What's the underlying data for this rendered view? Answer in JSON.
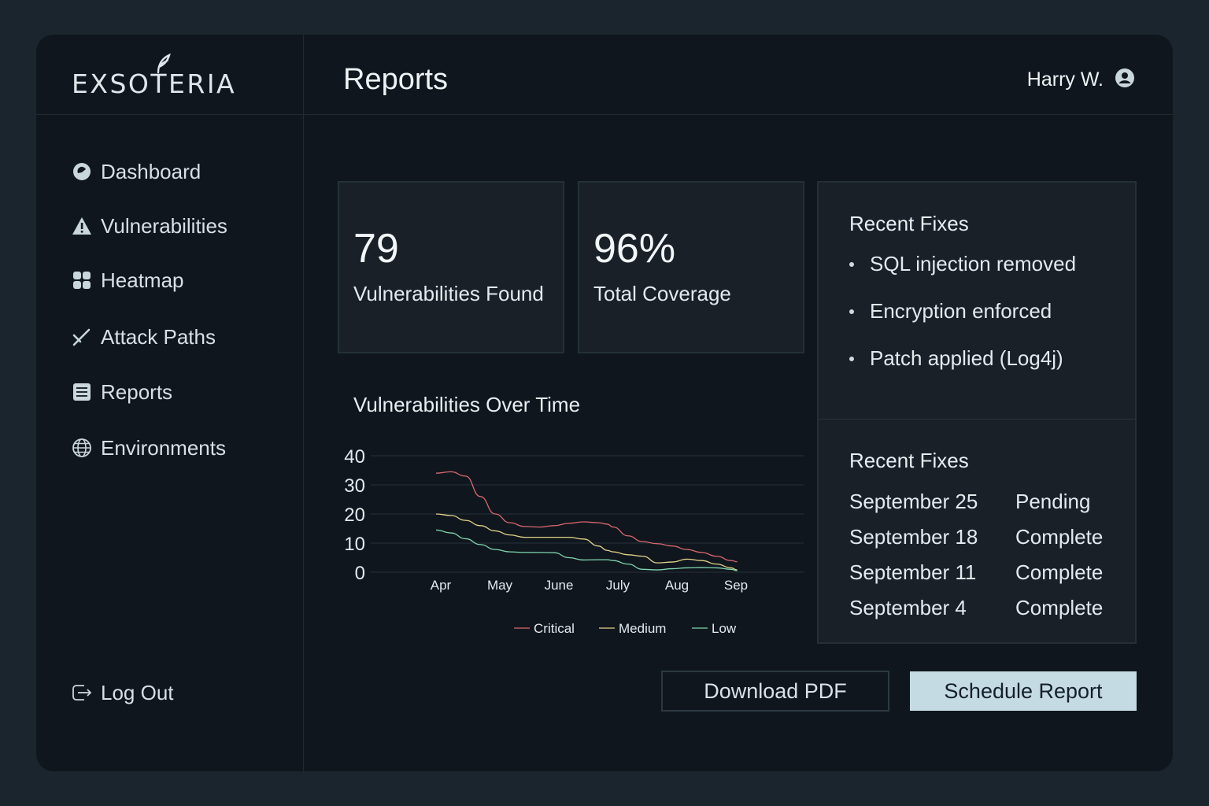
{
  "app": {
    "logo": "EXSOTERIA"
  },
  "header": {
    "title": "Reports",
    "user_name": "Harry W."
  },
  "sidebar": {
    "items": [
      {
        "label": "Dashboard",
        "icon": "dashboard-icon"
      },
      {
        "label": "Vulnerabilities",
        "icon": "warning-icon"
      },
      {
        "label": "Heatmap",
        "icon": "grid-icon"
      },
      {
        "label": "Attack Paths",
        "icon": "attack-path-icon"
      },
      {
        "label": "Reports",
        "icon": "report-icon"
      },
      {
        "label": "Environments",
        "icon": "globe-icon"
      }
    ],
    "logout_label": "Log Out"
  },
  "stats": [
    {
      "value": "79",
      "label": "Vulnerabilities Found"
    },
    {
      "value": "96%",
      "label": "Total Coverage"
    }
  ],
  "recent_fixes": {
    "title": "Recent Fixes",
    "items": [
      "SQL injection removed",
      "Encryption enforced",
      "Patch applied (Log4j)"
    ]
  },
  "schedule": {
    "title": "Recent Fixes",
    "rows": [
      {
        "date": "September 25",
        "status": "Pending"
      },
      {
        "date": "September 18",
        "status": "Complete"
      },
      {
        "date": "September 11",
        "status": "Complete"
      },
      {
        "date": "September 4",
        "status": "Complete"
      }
    ]
  },
  "buttons": {
    "download": "Download PDF",
    "schedule": "Schedule Report"
  },
  "colors": {
    "critical": "#d9686f",
    "medium": "#e2d48a",
    "low": "#7fd6b0",
    "accent_button": "#c5dbe3"
  },
  "chart_data": {
    "type": "line",
    "title": "Vulnerabilities Over Time",
    "categories": [
      "Apr",
      "May",
      "June",
      "July",
      "Aug",
      "Sep"
    ],
    "x": [
      0,
      0.5,
      1,
      1.5,
      2,
      2.5,
      3,
      3.5,
      4,
      4.5,
      5,
      5.5,
      5.8,
      6,
      6.5,
      7,
      7.5,
      8,
      8.5,
      9,
      9.5,
      10,
      10.2
    ],
    "ylim": [
      0,
      40
    ],
    "yticks": [
      0,
      10,
      20,
      30,
      40
    ],
    "grid": true,
    "legend": "bottom",
    "series": [
      {
        "name": "Critical",
        "values": [
          34,
          34.5,
          33,
          26,
          20,
          17,
          15.7,
          15.5,
          16,
          16.8,
          17.3,
          17,
          16.5,
          15.5,
          12.5,
          10.5,
          9.8,
          9,
          7.8,
          6.8,
          5.5,
          4,
          3.6
        ]
      },
      {
        "name": "Medium",
        "values": [
          20,
          19.5,
          17.8,
          16,
          14.2,
          12.8,
          12,
          12,
          12,
          12,
          11.4,
          9,
          7.5,
          7,
          6,
          5.5,
          3.2,
          3.5,
          4.5,
          4,
          2.8,
          1.5,
          0.8
        ]
      },
      {
        "name": "Low",
        "values": [
          14.5,
          13.5,
          11.5,
          9.5,
          7.8,
          7,
          6.8,
          6.8,
          6.7,
          5,
          4.2,
          4.3,
          4.3,
          4,
          2.8,
          1,
          0.8,
          1.2,
          1.5,
          1.6,
          1.5,
          1,
          0.5
        ]
      }
    ]
  }
}
